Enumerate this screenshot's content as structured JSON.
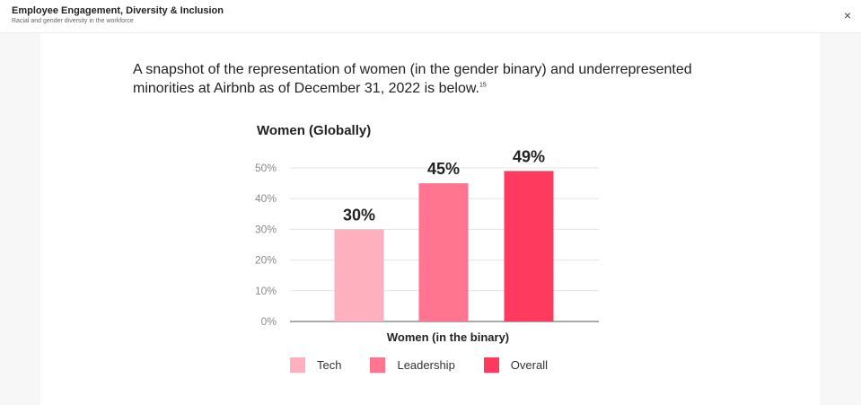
{
  "header": {
    "title": "Employee Engagement, Diversity & Inclusion",
    "subtitle": "Racial and gender diversity in the workforce",
    "close_symbol": "×"
  },
  "intro": {
    "text": "A snapshot of the representation of women (in the gender binary) and underrepresented minorities at Airbnb as of December 31, 2022 is below.",
    "footnote": "15"
  },
  "chart_data": {
    "type": "bar",
    "title": "Women (Globally)",
    "xlabel": "Women (in the binary)",
    "ylabel": "",
    "ylim": [
      0,
      50
    ],
    "yticks": [
      0,
      10,
      20,
      30,
      40,
      50
    ],
    "ytick_labels": [
      "0%",
      "10%",
      "20%",
      "30%",
      "40%",
      "50%"
    ],
    "grid": true,
    "legend_position": "bottom",
    "categories": [
      "Tech",
      "Leadership",
      "Overall"
    ],
    "values": [
      30,
      45,
      49
    ],
    "data_labels": [
      "30%",
      "45%",
      "49%"
    ],
    "colors": [
      "#ffb0bf",
      "#ff7590",
      "#ff3a5f"
    ]
  }
}
